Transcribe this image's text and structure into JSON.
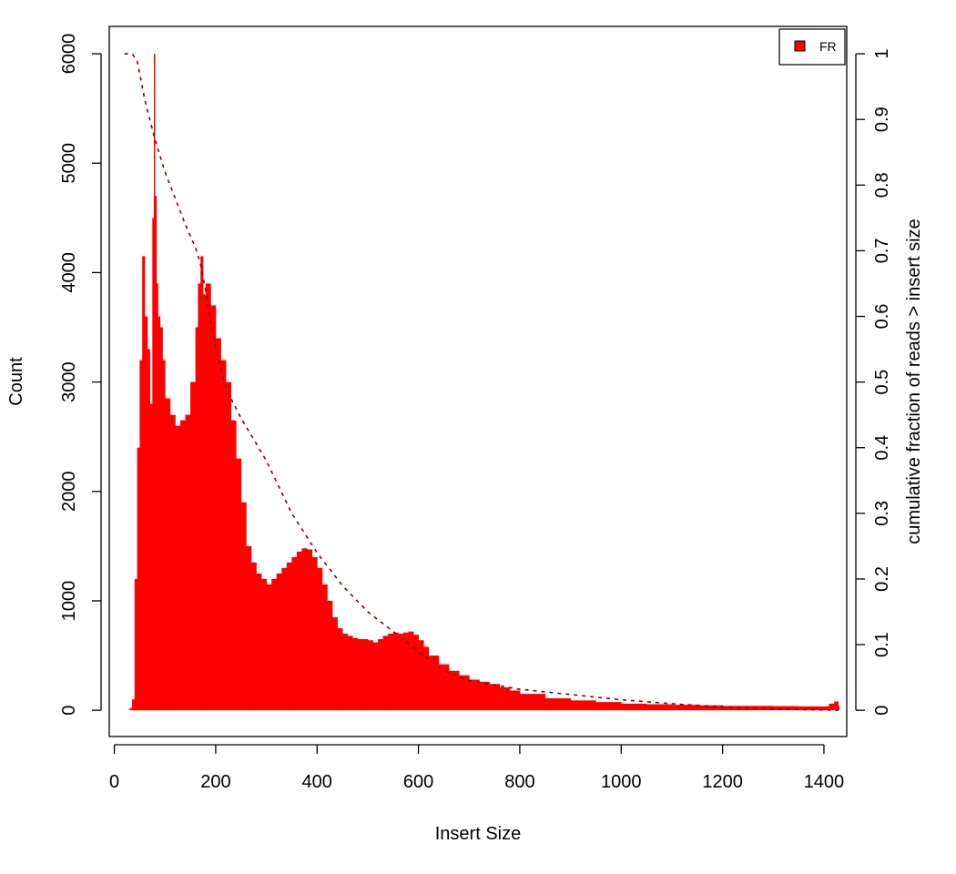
{
  "chart_data": {
    "type": "bar",
    "title": "",
    "xlabel": "Insert Size",
    "ylabel": "Count",
    "y2label": "cumulative fraction of reads > insert size",
    "xlim": [
      -10,
      1445
    ],
    "ylim": [
      -240,
      6250
    ],
    "y2lim": [
      -0.04,
      1.0417
    ],
    "x_ticks": [
      0,
      200,
      400,
      600,
      800,
      1000,
      1200,
      1400
    ],
    "y_ticks": [
      0,
      1000,
      2000,
      3000,
      4000,
      5000,
      6000
    ],
    "y2_ticks": [
      0,
      0.1,
      0.2,
      0.3,
      0.4,
      0.5,
      0.6,
      0.7,
      0.8,
      0.9,
      1
    ],
    "grid": false,
    "legend": {
      "position": "top-right",
      "entries": [
        "FR"
      ]
    },
    "colors": {
      "histogram": "#ff0000",
      "cumulative": "#8b0000",
      "axis": "#000000"
    },
    "series": [
      {
        "name": "FR",
        "kind": "histogram",
        "x": [
          20,
          30,
          35,
          40,
          45,
          50,
          55,
          60,
          65,
          70,
          75,
          78,
          80,
          83,
          86,
          90,
          95,
          100,
          110,
          120,
          130,
          140,
          150,
          160,
          165,
          170,
          175,
          180,
          190,
          200,
          210,
          220,
          230,
          240,
          250,
          260,
          270,
          280,
          290,
          300,
          310,
          320,
          330,
          340,
          350,
          360,
          370,
          380,
          390,
          400,
          410,
          420,
          430,
          440,
          450,
          460,
          470,
          480,
          490,
          500,
          510,
          520,
          530,
          540,
          550,
          560,
          570,
          580,
          590,
          600,
          610,
          620,
          640,
          660,
          680,
          700,
          720,
          740,
          760,
          780,
          800,
          850,
          900,
          950,
          1000,
          1050,
          1100,
          1150,
          1200,
          1250,
          1300,
          1350,
          1400,
          1410,
          1420,
          1428
        ],
        "values": [
          0,
          20,
          100,
          1200,
          2400,
          3200,
          4150,
          3600,
          3300,
          2800,
          4500,
          6000,
          4700,
          3900,
          3600,
          3500,
          3200,
          2850,
          2700,
          2600,
          2650,
          2700,
          3000,
          3500,
          3900,
          4150,
          3800,
          3900,
          3700,
          3400,
          3200,
          3000,
          2650,
          2300,
          1900,
          1500,
          1350,
          1250,
          1200,
          1150,
          1200,
          1250,
          1300,
          1350,
          1400,
          1450,
          1480,
          1470,
          1400,
          1300,
          1150,
          1000,
          850,
          750,
          700,
          680,
          660,
          650,
          650,
          640,
          620,
          650,
          680,
          700,
          710,
          700,
          710,
          720,
          690,
          640,
          580,
          500,
          420,
          360,
          320,
          280,
          260,
          240,
          210,
          180,
          150,
          110,
          90,
          75,
          60,
          55,
          50,
          45,
          40,
          40,
          38,
          35,
          35,
          60,
          80,
          40
        ]
      },
      {
        "name": "",
        "kind": "cumulative",
        "x": [
          20,
          35,
          45,
          50,
          60,
          70,
          80,
          100,
          120,
          140,
          160,
          170,
          180,
          200,
          220,
          250,
          300,
          350,
          400,
          450,
          500,
          550,
          600,
          650,
          700,
          800,
          900,
          1000,
          1100,
          1200,
          1300,
          1400,
          1428
        ],
        "values": [
          1.0,
          1.0,
          0.99,
          0.97,
          0.93,
          0.9,
          0.87,
          0.82,
          0.78,
          0.74,
          0.705,
          0.68,
          0.64,
          0.55,
          0.49,
          0.445,
          0.38,
          0.3,
          0.24,
          0.19,
          0.15,
          0.12,
          0.09,
          0.06,
          0.045,
          0.032,
          0.024,
          0.016,
          0.01,
          0.005,
          0.002,
          0.0005,
          0.0
        ]
      }
    ]
  }
}
